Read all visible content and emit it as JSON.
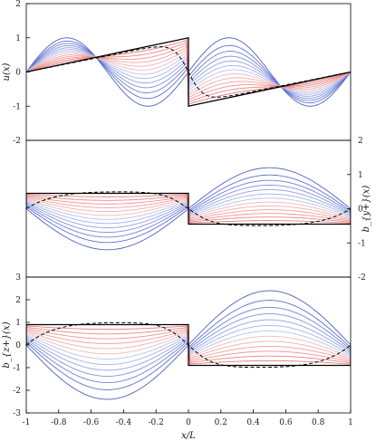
{
  "chart_data": [
    {
      "type": "line",
      "ylabel": "u(x)",
      "xlim": [
        -1,
        1
      ],
      "ylim": [
        -2,
        2
      ],
      "yticks": [
        "2",
        "1",
        "0",
        "-1",
        "-2"
      ],
      "ytick_values": [
        2,
        1,
        0,
        -1,
        -2
      ],
      "ytick_side": "left",
      "profile": "sawtooth",
      "amp": 1.0,
      "initial": {
        "shape": "sin2pi",
        "amp": 1.0
      },
      "shock_x": [
        -1,
        0,
        0,
        1
      ],
      "shock_y": [
        0,
        1,
        -1,
        0
      ],
      "dashed_x": [
        -1,
        -0.2,
        0,
        0.2,
        1
      ],
      "dashed_y": [
        0,
        0.55,
        0,
        -0.55,
        0
      ],
      "series_colors": {
        "early": "#3b4cc0",
        "late": "#e06060",
        "final": "#000000"
      }
    },
    {
      "type": "line",
      "ylabel": "b_{y+}(x)",
      "xlim": [
        -1,
        1
      ],
      "ylim": [
        -2,
        2
      ],
      "yticks": [
        "2",
        "1",
        "0",
        "-1",
        "-2"
      ],
      "ytick_values": [
        2,
        1,
        0,
        -1,
        -2
      ],
      "ytick_side": "right",
      "profile": "step",
      "amp": 0.45,
      "initial": {
        "shape": "sinpi",
        "amp": 1.2
      },
      "dashed_amp": 0.5,
      "series_colors": {
        "early": "#3b4cc0",
        "late": "#e06060",
        "final": "#000000"
      }
    },
    {
      "type": "line",
      "ylabel": "b_{z+}(x)",
      "xlabel": "x/L",
      "xlim": [
        -1,
        1
      ],
      "ylim": [
        -3,
        3
      ],
      "yticks": [
        "3",
        "2",
        "1",
        "0",
        "-1",
        "-2",
        "-3"
      ],
      "ytick_values": [
        3,
        2,
        1,
        0,
        -1,
        -2,
        -3
      ],
      "ytick_side": "left",
      "profile": "step",
      "amp": 0.9,
      "initial": {
        "shape": "sinpi",
        "amp": 2.4
      },
      "dashed_amp": 1.0,
      "xticks": [
        "-1",
        "-0.8",
        "-0.6",
        "-0.4",
        "-0.2",
        "0",
        "0.2",
        "0.4",
        "0.6",
        "0.8",
        "1"
      ],
      "xtick_values": [
        -1,
        -0.8,
        -0.6,
        -0.4,
        -0.2,
        0,
        0.2,
        0.4,
        0.6,
        0.8,
        1
      ],
      "series_colors": {
        "early": "#3b4cc0",
        "late": "#e06060",
        "final": "#000000"
      }
    }
  ]
}
